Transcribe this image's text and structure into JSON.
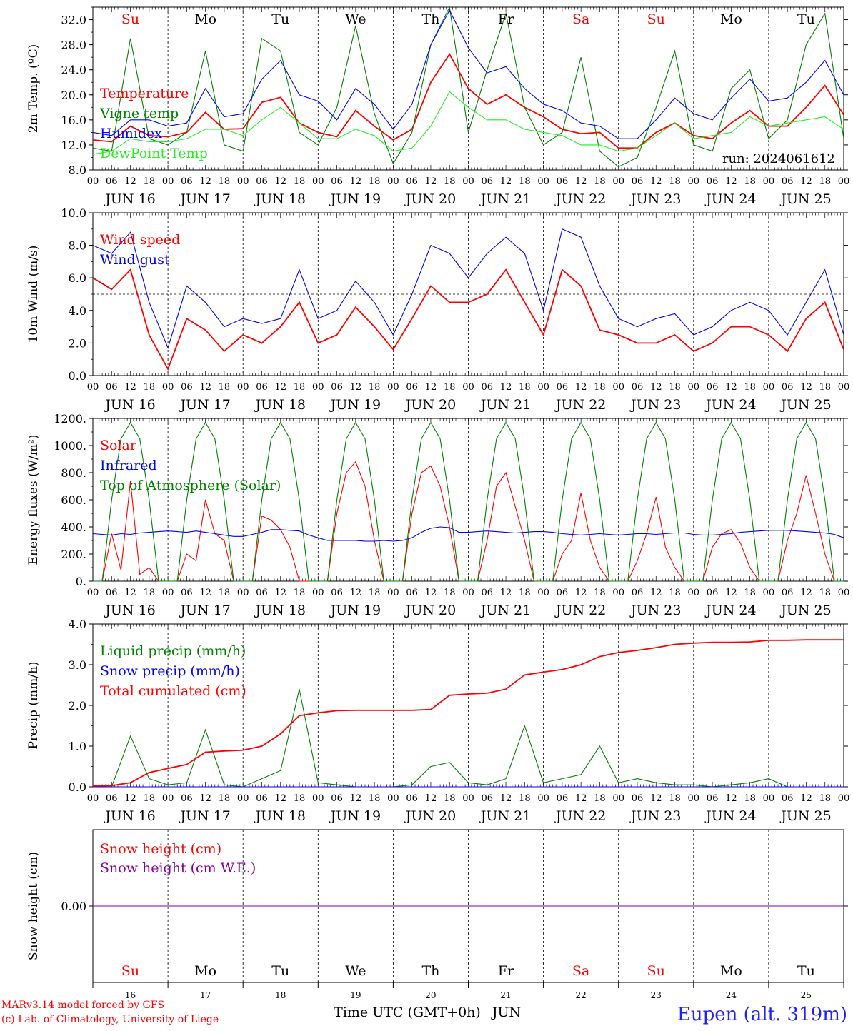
{
  "footer": {
    "model": "MARv3.14 model forced by GFS",
    "lab": "(c) Lab. of Climatology, University of Liege",
    "station": "Eupen (alt. 319m)",
    "xaxis_title": "Time UTC (GMT+0h)",
    "month": "JUN"
  },
  "colors": {
    "red": "#ff0000",
    "blue": "#0000ff",
    "dkgreen": "#008000",
    "ltgreen": "#22ee22",
    "purple": "#8000a0",
    "daycolor_weekend": "#ff0000",
    "daycolor_weekday": "#000000"
  },
  "days": [
    {
      "abbr": "Su",
      "date": "JUN 16",
      "num": "16",
      "weekend": true
    },
    {
      "abbr": "Mo",
      "date": "JUN 17",
      "num": "17",
      "weekend": false
    },
    {
      "abbr": "Tu",
      "date": "JUN 18",
      "num": "18",
      "weekend": false
    },
    {
      "abbr": "We",
      "date": "JUN 19",
      "num": "19",
      "weekend": false
    },
    {
      "abbr": "Th",
      "date": "JUN 20",
      "num": "20",
      "weekend": false
    },
    {
      "abbr": "Fr",
      "date": "JUN 21",
      "num": "21",
      "weekend": false
    },
    {
      "abbr": "Sa",
      "date": "JUN 22",
      "num": "22",
      "weekend": true
    },
    {
      "abbr": "Su",
      "date": "JUN 23",
      "num": "23",
      "weekend": true
    },
    {
      "abbr": "Mo",
      "date": "JUN 24",
      "num": "24",
      "weekend": false
    },
    {
      "abbr": "Tu",
      "date": "JUN 25",
      "num": "25",
      "weekend": false
    }
  ],
  "hour_labels": [
    "00",
    "06",
    "12",
    "18"
  ],
  "chart_data": [
    {
      "type": "line",
      "ylabel": "2m Temp. (ºC)",
      "ylim": [
        8,
        34
      ],
      "yticks": [
        8,
        12,
        16,
        20,
        24,
        28,
        32
      ],
      "ytick_labels": [
        "8.0",
        "12.0",
        "16.0",
        "20.0",
        "24.0",
        "28.0",
        "32.0"
      ],
      "annotation": "run: 2024061612",
      "x_hours": [
        0,
        6,
        12,
        18,
        24,
        30,
        36,
        42,
        48,
        54,
        60,
        66,
        72,
        78,
        84,
        90,
        96,
        102,
        108,
        114,
        120,
        126,
        132,
        138,
        144,
        150,
        156,
        162,
        168,
        174,
        180,
        186,
        192,
        198,
        204,
        210,
        216,
        222,
        228,
        234,
        240
      ],
      "series": [
        {
          "name": "Temperature",
          "color": "#ff0000",
          "values": [
            12.8,
            12.5,
            15.0,
            13.5,
            13.3,
            14.0,
            17.2,
            14.5,
            14.6,
            18.8,
            19.6,
            15.5,
            14.0,
            13.3,
            17.5,
            15.0,
            12.8,
            14.5,
            22.0,
            26.5,
            21.0,
            18.5,
            20.0,
            18.0,
            16.5,
            14.5,
            13.8,
            14.0,
            11.5,
            11.5,
            14.0,
            15.5,
            13.5,
            13.0,
            15.5,
            17.5,
            15.0,
            15.0,
            18.0,
            21.5,
            16.8
          ]
        },
        {
          "name": "Vigne temp",
          "color": "#008000",
          "values": [
            11.5,
            11.0,
            29.0,
            13.0,
            12.0,
            14.0,
            27.0,
            12.0,
            11.0,
            29.0,
            27.0,
            14.0,
            12.0,
            18.0,
            31.0,
            17.0,
            9.0,
            14.0,
            28.0,
            34.0,
            14.0,
            24.0,
            33.0,
            18.0,
            12.0,
            14.0,
            26.0,
            11.0,
            8.5,
            10.0,
            18.0,
            27.0,
            12.0,
            11.0,
            21.0,
            24.0,
            13.0,
            16.0,
            28.0,
            33.0,
            13.0
          ]
        },
        {
          "name": "Humidex",
          "color": "#0000ff",
          "values": [
            14.0,
            13.5,
            16.0,
            16.0,
            15.0,
            15.5,
            21.0,
            16.5,
            17.0,
            22.5,
            25.5,
            20.0,
            19.0,
            16.0,
            21.0,
            18.5,
            14.5,
            18.5,
            28.0,
            33.5,
            27.5,
            23.5,
            24.5,
            21.0,
            18.5,
            17.5,
            15.5,
            15.0,
            13.0,
            13.0,
            16.0,
            19.5,
            17.0,
            16.0,
            19.5,
            22.5,
            19.0,
            19.5,
            22.0,
            25.5,
            20.0
          ]
        },
        {
          "name": "DewPoint Temp",
          "color": "#22ee22",
          "values": [
            10.5,
            11.0,
            13.0,
            12.5,
            12.5,
            13.0,
            14.5,
            14.5,
            13.5,
            16.0,
            18.0,
            15.5,
            13.0,
            13.0,
            14.5,
            13.5,
            11.0,
            11.5,
            15.0,
            20.5,
            18.0,
            16.0,
            16.0,
            14.5,
            14.0,
            13.5,
            12.0,
            12.0,
            11.0,
            11.5,
            13.5,
            15.5,
            13.0,
            13.5,
            14.0,
            16.5,
            15.0,
            15.5,
            16.0,
            16.5,
            14.5
          ]
        }
      ]
    },
    {
      "type": "line",
      "ylabel": "10m Wind (m/s)",
      "ylim": [
        0,
        10
      ],
      "yticks": [
        0,
        2,
        4,
        6,
        8,
        10
      ],
      "ytick_labels": [
        "0.0",
        "2.0",
        "4.0",
        "6.0",
        "8.0",
        "10.0"
      ],
      "reference_line": 5.0,
      "x_hours": [
        0,
        6,
        12,
        18,
        24,
        30,
        36,
        42,
        48,
        54,
        60,
        66,
        72,
        78,
        84,
        90,
        96,
        102,
        108,
        114,
        120,
        126,
        132,
        138,
        144,
        150,
        156,
        162,
        168,
        174,
        180,
        186,
        192,
        198,
        204,
        210,
        216,
        222,
        228,
        234,
        240
      ],
      "series": [
        {
          "name": "Wind speed",
          "color": "#ff0000",
          "values": [
            6.0,
            5.3,
            6.5,
            2.5,
            0.4,
            3.5,
            2.8,
            1.5,
            2.5,
            2.0,
            3.0,
            4.5,
            2.0,
            2.5,
            4.2,
            3.0,
            1.6,
            3.5,
            5.5,
            4.5,
            4.5,
            5.0,
            6.5,
            4.5,
            2.5,
            6.5,
            5.5,
            2.8,
            2.5,
            2.0,
            2.0,
            2.5,
            1.5,
            2.0,
            3.0,
            3.0,
            2.5,
            1.5,
            3.5,
            4.5,
            1.6
          ]
        },
        {
          "name": "Wind gust",
          "color": "#0000ff",
          "values": [
            8.0,
            7.5,
            8.8,
            4.5,
            1.7,
            5.5,
            4.5,
            3.0,
            3.5,
            3.2,
            3.5,
            6.5,
            3.5,
            4.0,
            5.8,
            4.5,
            2.5,
            5.0,
            8.0,
            7.5,
            6.0,
            7.5,
            8.5,
            7.5,
            4.0,
            9.0,
            8.5,
            5.5,
            3.5,
            3.0,
            3.5,
            3.8,
            2.5,
            3.0,
            4.0,
            4.5,
            4.0,
            2.5,
            4.5,
            6.5,
            2.5
          ]
        }
      ]
    },
    {
      "type": "line",
      "ylabel": "Energy fluxes (W/m²)",
      "ylim": [
        0,
        1200
      ],
      "yticks": [
        0,
        200,
        400,
        600,
        800,
        1000,
        1200
      ],
      "ytick_labels": [
        "0.",
        "200.",
        "400.",
        "600.",
        "800.",
        "1000.",
        "1200."
      ],
      "x_hours": [
        0,
        3,
        6,
        9,
        12,
        15,
        18,
        21,
        24,
        27,
        30,
        33,
        36,
        39,
        42,
        45,
        48,
        51,
        54,
        57,
        60,
        63,
        66,
        69,
        72,
        75,
        78,
        81,
        84,
        87,
        90,
        93,
        96,
        99,
        102,
        105,
        108,
        111,
        114,
        117,
        120,
        123,
        126,
        129,
        132,
        135,
        138,
        141,
        144,
        147,
        150,
        153,
        156,
        159,
        162,
        165,
        168,
        171,
        174,
        177,
        180,
        183,
        186,
        189,
        192,
        195,
        198,
        201,
        204,
        207,
        210,
        213,
        216,
        219,
        222,
        225,
        228,
        231,
        234,
        237,
        240
      ],
      "series": [
        {
          "name": "Solar",
          "color": "#ff0000",
          "values": [
            0,
            0,
            350,
            80,
            740,
            50,
            100,
            0,
            0,
            0,
            200,
            150,
            600,
            350,
            300,
            0,
            0,
            0,
            480,
            450,
            380,
            250,
            0,
            0,
            0,
            0,
            500,
            800,
            880,
            700,
            300,
            0,
            0,
            0,
            500,
            800,
            850,
            700,
            400,
            0,
            0,
            0,
            300,
            700,
            800,
            550,
            300,
            0,
            0,
            0,
            200,
            300,
            650,
            300,
            100,
            0,
            0,
            0,
            150,
            350,
            620,
            250,
            100,
            0,
            0,
            0,
            250,
            350,
            380,
            280,
            100,
            0,
            0,
            0,
            300,
            500,
            780,
            500,
            200,
            0,
            0
          ]
        },
        {
          "name": "Infrared",
          "color": "#0000ff",
          "values": [
            350,
            345,
            340,
            350,
            345,
            355,
            360,
            365,
            370,
            365,
            360,
            370,
            360,
            350,
            340,
            330,
            330,
            345,
            360,
            380,
            380,
            375,
            370,
            340,
            320,
            300,
            300,
            300,
            300,
            295,
            295,
            300,
            295,
            300,
            320,
            360,
            390,
            400,
            395,
            360,
            360,
            365,
            370,
            365,
            360,
            355,
            360,
            365,
            365,
            360,
            350,
            345,
            340,
            345,
            350,
            345,
            340,
            345,
            350,
            350,
            345,
            350,
            355,
            355,
            345,
            340,
            340,
            345,
            350,
            360,
            365,
            370,
            375,
            375,
            375,
            370,
            365,
            360,
            355,
            345,
            320
          ]
        },
        {
          "name": "Top of Atmosphere (Solar)",
          "color": "#008000",
          "values": [
            0,
            0,
            600,
            1050,
            1170,
            1050,
            600,
            0,
            0,
            0,
            600,
            1050,
            1170,
            1050,
            600,
            0,
            0,
            0,
            600,
            1050,
            1170,
            1050,
            600,
            0,
            0,
            0,
            600,
            1050,
            1170,
            1050,
            600,
            0,
            0,
            0,
            600,
            1050,
            1170,
            1050,
            600,
            0,
            0,
            0,
            600,
            1050,
            1170,
            1050,
            600,
            0,
            0,
            0,
            600,
            1050,
            1170,
            1050,
            600,
            0,
            0,
            0,
            600,
            1050,
            1170,
            1050,
            600,
            0,
            0,
            0,
            600,
            1050,
            1170,
            1050,
            600,
            0,
            0,
            0,
            600,
            1050,
            1170,
            1050,
            600,
            0,
            0
          ]
        }
      ]
    },
    {
      "type": "line",
      "ylabel": "Precip (mm/h)",
      "ylim": [
        0,
        4
      ],
      "yticks": [
        0,
        1,
        2,
        3,
        4
      ],
      "ytick_labels": [
        "0.0",
        "1.0",
        "2.0",
        "3.0",
        "4.0"
      ],
      "x_hours": [
        0,
        6,
        12,
        18,
        24,
        30,
        36,
        42,
        48,
        54,
        60,
        66,
        72,
        78,
        84,
        90,
        96,
        102,
        108,
        114,
        120,
        126,
        132,
        138,
        144,
        150,
        156,
        162,
        168,
        174,
        180,
        186,
        192,
        198,
        204,
        210,
        216,
        222,
        228,
        234,
        240
      ],
      "series": [
        {
          "name": "Liquid precip (mm/h)",
          "color": "#008000",
          "values": [
            0.0,
            0.0,
            1.25,
            0.2,
            0.05,
            0.1,
            1.4,
            0.05,
            0.0,
            0.2,
            0.4,
            2.4,
            0.1,
            0.05,
            0.0,
            0.0,
            0.0,
            0.05,
            0.5,
            0.6,
            0.1,
            0.05,
            0.2,
            1.5,
            0.1,
            0.2,
            0.3,
            1.0,
            0.1,
            0.2,
            0.1,
            0.05,
            0.05,
            0.0,
            0.05,
            0.1,
            0.2,
            0.0,
            0.0,
            0.0,
            0.0
          ]
        },
        {
          "name": "Snow precip (mm/h)",
          "color": "#0000ff",
          "values": [
            0.0,
            0.0,
            0.0,
            0.0,
            0.0,
            0.0,
            0.0,
            0.0,
            0.0,
            0.0,
            0.0,
            0.0,
            0.0,
            0.0,
            0.0,
            0.0,
            0.0,
            0.0,
            0.0,
            0.0,
            0.0,
            0.0,
            0.0,
            0.0,
            0.0,
            0.0,
            0.0,
            0.0,
            0.0,
            0.0,
            0.0,
            0.0,
            0.0,
            0.0,
            0.0,
            0.0,
            0.0,
            0.0,
            0.0,
            0.0,
            0.0
          ]
        },
        {
          "name": "Total cumulated (cm)",
          "color": "#ff0000",
          "values": [
            0.02,
            0.03,
            0.1,
            0.35,
            0.45,
            0.55,
            0.85,
            0.88,
            0.9,
            1.0,
            1.3,
            1.75,
            1.82,
            1.87,
            1.88,
            1.88,
            1.88,
            1.88,
            1.9,
            2.25,
            2.28,
            2.3,
            2.4,
            2.75,
            2.82,
            2.88,
            3.0,
            3.2,
            3.3,
            3.35,
            3.42,
            3.5,
            3.53,
            3.55,
            3.55,
            3.56,
            3.6,
            3.6,
            3.61,
            3.61,
            3.61
          ]
        }
      ]
    },
    {
      "type": "line",
      "ylabel": "Snow height (cm)",
      "ylim": [
        -1,
        1
      ],
      "yticks": [
        0
      ],
      "ytick_labels": [
        "0.00"
      ],
      "x_hours": [
        0,
        240
      ],
      "series": [
        {
          "name": "Snow height (cm)",
          "color": "#ff0000",
          "values": [
            0,
            0
          ]
        },
        {
          "name": "Snow height (cm W.E.)",
          "color": "#8000a0",
          "values": [
            0,
            0
          ]
        }
      ]
    }
  ]
}
